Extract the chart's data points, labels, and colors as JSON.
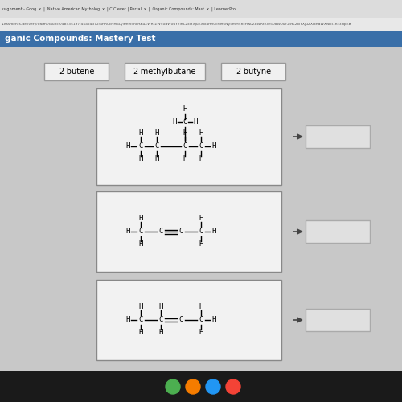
{
  "background_color": "#c8c8c8",
  "tab_bar_color": "#dcdcdc",
  "url_bar_color": "#e8e8e8",
  "header_color": "#3a6fa8",
  "header_text": "ganic Compounds: Mastery Test",
  "labels": [
    "2-butene",
    "2-methylbutane",
    "2-butyne"
  ],
  "label_box_color": "#f0f0f0",
  "label_border_color": "#999999",
  "structure_box_color": "#f2f2f2",
  "structure_border_color": "#888888",
  "answer_box_color": "#e0e0e0",
  "answer_border_color": "#aaaaaa",
  "arrow_color": "#444444",
  "taskbar_color": "#1a1a1a",
  "tab_text": "ssignment - Goog  x  |  Native American Mytholog  x  | C Clever | Portal  x  |  Organic Compounds: Mast  x  | LearnerPro",
  "url_text": "s-essments-delivery/ua/mt/launch/48935197/45424372/aHR0cHM6Ly9mM5hcHAuZWRtZW50dW0uY29tL2xlYXJuZXIxaHR0cHM6Ny9mM5hcHAuZdWRtZW50dW0uY29tL2xlYXJuZXIxhdWXNIci1hc3NpZA"
}
